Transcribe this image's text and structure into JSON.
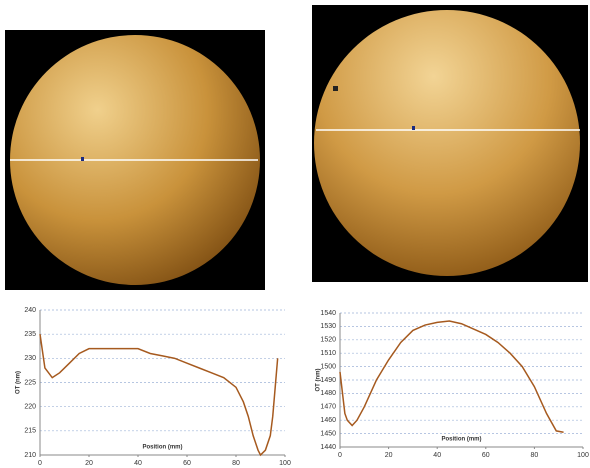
{
  "chart_data": [
    {
      "type": "line",
      "ylabel": "OT (nm)",
      "xlabel": "Position (mm)",
      "x": [
        0,
        2,
        5,
        8,
        12,
        16,
        20,
        25,
        30,
        35,
        40,
        45,
        50,
        55,
        60,
        65,
        70,
        75,
        80,
        83,
        85,
        87,
        89,
        90,
        92,
        94,
        95,
        96,
        97
      ],
      "series": [
        {
          "color": "#a65a1f",
          "values": [
            235,
            228,
            226,
            227,
            229,
            231,
            232,
            232,
            232,
            232,
            232,
            231,
            230.5,
            230,
            229,
            228,
            227,
            226,
            224,
            221,
            218,
            214,
            211,
            210,
            211,
            214,
            218,
            224,
            230
          ]
        }
      ],
      "xlim": [
        0,
        100
      ],
      "xticks": [
        0,
        20,
        40,
        60,
        80,
        100
      ],
      "ylim": [
        210,
        240
      ],
      "yticks": [
        210,
        215,
        220,
        225,
        230,
        235,
        240
      ],
      "grid": true
    },
    {
      "type": "line",
      "ylabel": "OT (nm)",
      "xlabel": "Position (mm)",
      "x": [
        0,
        2,
        3,
        5,
        7,
        10,
        15,
        20,
        25,
        30,
        35,
        40,
        45,
        50,
        55,
        60,
        65,
        70,
        75,
        80,
        85,
        89,
        92
      ],
      "series": [
        {
          "color": "#a65a1f",
          "values": [
            1496,
            1465,
            1460,
            1456,
            1460,
            1470,
            1490,
            1505,
            1518,
            1527,
            1531,
            1533,
            1534,
            1532,
            1528,
            1524,
            1518,
            1510,
            1500,
            1485,
            1465,
            1452,
            1451
          ]
        }
      ],
      "xlim": [
        0,
        100
      ],
      "xticks": [
        0,
        20,
        40,
        60,
        80,
        100
      ],
      "ylim": [
        1440,
        1540
      ],
      "yticks": [
        1440,
        1450,
        1460,
        1470,
        1480,
        1490,
        1500,
        1510,
        1520,
        1530,
        1540
      ],
      "grid": true
    }
  ]
}
